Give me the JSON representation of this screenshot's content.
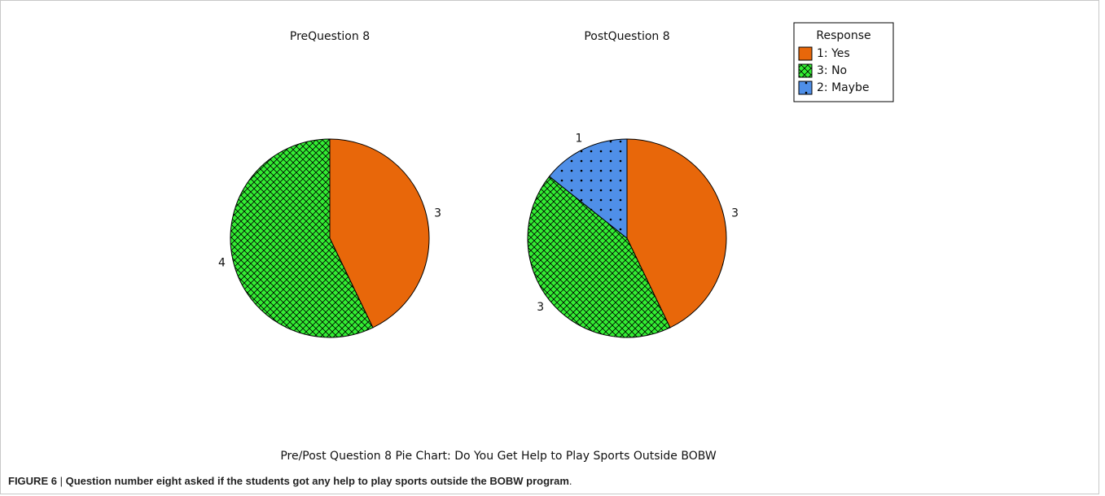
{
  "chart_data": [
    {
      "type": "pie",
      "title": "PreQuestion 8",
      "categories": [
        "1: Yes",
        "3: No"
      ],
      "values": [
        3,
        4
      ],
      "colors": [
        "#e8670a",
        "#33ee33"
      ],
      "patterns": [
        "solid",
        "crosshatch"
      ],
      "direction": "clockwise",
      "start": "top"
    },
    {
      "type": "pie",
      "title": "PostQuestion 8",
      "categories": [
        "1: Yes",
        "3: No",
        "2: Maybe"
      ],
      "values": [
        3,
        3,
        1
      ],
      "colors": [
        "#e8670a",
        "#33ee33",
        "#4f8fe8"
      ],
      "patterns": [
        "solid",
        "crosshatch",
        "dots"
      ],
      "direction": "clockwise",
      "start": "top",
      "legend": {
        "title": "Response",
        "position": "top-right"
      }
    }
  ],
  "footer_title": "Pre/Post Question 8 Pie Chart: Do You Get Help to Play Sports Outside BOBW",
  "caption": {
    "label": "FIGURE 6",
    "separator": "|",
    "text": "Question number eight asked if the students got any help to play sports outside the BOBW program",
    "end": "."
  }
}
